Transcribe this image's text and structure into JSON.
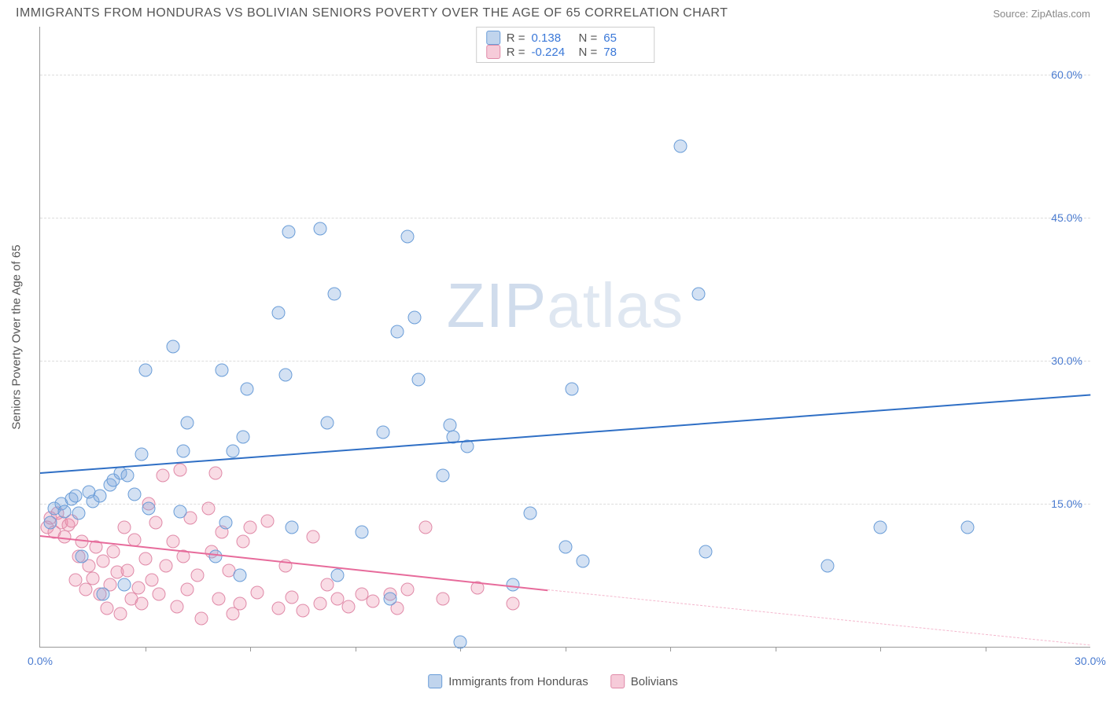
{
  "header": {
    "title": "IMMIGRANTS FROM HONDURAS VS BOLIVIAN SENIORS POVERTY OVER THE AGE OF 65 CORRELATION CHART",
    "source_prefix": "Source: ",
    "source_link": "ZipAtlas.com"
  },
  "watermark": {
    "part1": "ZIP",
    "part2": "atlas"
  },
  "chart": {
    "type": "scatter",
    "yaxis_title": "Seniors Poverty Over the Age of 65",
    "xlim": [
      0,
      30
    ],
    "ylim": [
      0,
      65
    ],
    "xtick_labels": [
      "0.0%",
      "30.0%"
    ],
    "ytick_labels": [
      "15.0%",
      "30.0%",
      "45.0%",
      "60.0%"
    ],
    "ytick_vals": [
      15,
      30,
      45,
      60
    ],
    "xtick_minor": [
      3,
      6,
      9,
      12,
      15,
      18,
      21,
      24,
      27
    ],
    "background_color": "#ffffff",
    "grid_color": "#e0e0e0",
    "point_radius": 8.5,
    "series": {
      "honduras": {
        "label": "Immigrants from Honduras",
        "color_fill": "rgba(130,170,220,0.35)",
        "color_stroke": "#6a9dd8",
        "r": "0.138",
        "n": "65",
        "trend": {
          "x1": 0,
          "y1": 18.3,
          "x2": 30,
          "y2": 26.5,
          "color": "#2f6fc5"
        },
        "points": [
          [
            0.3,
            13
          ],
          [
            0.4,
            14.5
          ],
          [
            0.6,
            15
          ],
          [
            0.7,
            14.2
          ],
          [
            0.9,
            15.5
          ],
          [
            1.0,
            15.8
          ],
          [
            1.1,
            14
          ],
          [
            1.2,
            9.5
          ],
          [
            1.4,
            16.2
          ],
          [
            1.5,
            15.2
          ],
          [
            1.7,
            15.8
          ],
          [
            1.8,
            5.5
          ],
          [
            2.0,
            17
          ],
          [
            2.1,
            17.5
          ],
          [
            2.3,
            18.2
          ],
          [
            2.4,
            6.5
          ],
          [
            2.5,
            18
          ],
          [
            2.7,
            16
          ],
          [
            2.9,
            20.2
          ],
          [
            3.0,
            29
          ],
          [
            3.1,
            14.5
          ],
          [
            3.8,
            31.5
          ],
          [
            4.0,
            14.2
          ],
          [
            4.1,
            20.5
          ],
          [
            4.2,
            23.5
          ],
          [
            5.0,
            9.5
          ],
          [
            5.2,
            29
          ],
          [
            5.3,
            13
          ],
          [
            5.5,
            20.5
          ],
          [
            5.7,
            7.5
          ],
          [
            5.8,
            22
          ],
          [
            5.9,
            27
          ],
          [
            6.8,
            35
          ],
          [
            7.0,
            28.5
          ],
          [
            7.1,
            43.5
          ],
          [
            7.2,
            12.5
          ],
          [
            8.0,
            43.8
          ],
          [
            8.2,
            23.5
          ],
          [
            8.4,
            37
          ],
          [
            8.5,
            7.5
          ],
          [
            9.2,
            12
          ],
          [
            9.8,
            22.5
          ],
          [
            10.0,
            5
          ],
          [
            10.2,
            33
          ],
          [
            10.5,
            43
          ],
          [
            10.7,
            34.5
          ],
          [
            10.8,
            28
          ],
          [
            11.5,
            18
          ],
          [
            11.7,
            23.2
          ],
          [
            11.8,
            22
          ],
          [
            12.0,
            0.5
          ],
          [
            12.2,
            21
          ],
          [
            13.5,
            6.5
          ],
          [
            14.0,
            14
          ],
          [
            15.0,
            10.5
          ],
          [
            15.2,
            27
          ],
          [
            15.5,
            9
          ],
          [
            18.3,
            52.5
          ],
          [
            18.8,
            37
          ],
          [
            19.0,
            10
          ],
          [
            22.5,
            8.5
          ],
          [
            24.0,
            12.5
          ],
          [
            26.5,
            12.5
          ]
        ]
      },
      "bolivians": {
        "label": "Bolivians",
        "color_fill": "rgba(235,140,170,0.3)",
        "color_stroke": "#e08aa8",
        "r": "-0.224",
        "n": "78",
        "trend_solid": {
          "x1": 0,
          "y1": 11.7,
          "x2": 14.5,
          "y2": 6,
          "color": "#e76b9b"
        },
        "trend_dash": {
          "x1": 14.5,
          "y1": 6,
          "x2": 30,
          "y2": 0.2
        },
        "points": [
          [
            0.2,
            12.5
          ],
          [
            0.3,
            13.5
          ],
          [
            0.4,
            12
          ],
          [
            0.5,
            14
          ],
          [
            0.6,
            13
          ],
          [
            0.7,
            11.5
          ],
          [
            0.8,
            12.8
          ],
          [
            0.9,
            13.2
          ],
          [
            1.0,
            7
          ],
          [
            1.1,
            9.5
          ],
          [
            1.2,
            11
          ],
          [
            1.3,
            6
          ],
          [
            1.4,
            8.5
          ],
          [
            1.5,
            7.2
          ],
          [
            1.6,
            10.5
          ],
          [
            1.7,
            5.5
          ],
          [
            1.8,
            9
          ],
          [
            1.9,
            4
          ],
          [
            2.0,
            6.5
          ],
          [
            2.1,
            10
          ],
          [
            2.2,
            7.8
          ],
          [
            2.3,
            3.5
          ],
          [
            2.4,
            12.5
          ],
          [
            2.5,
            8
          ],
          [
            2.6,
            5
          ],
          [
            2.7,
            11.2
          ],
          [
            2.8,
            6.2
          ],
          [
            2.9,
            4.5
          ],
          [
            3.0,
            9.2
          ],
          [
            3.1,
            15
          ],
          [
            3.2,
            7
          ],
          [
            3.3,
            13
          ],
          [
            3.4,
            5.5
          ],
          [
            3.5,
            18
          ],
          [
            3.6,
            8.5
          ],
          [
            3.8,
            11
          ],
          [
            3.9,
            4.2
          ],
          [
            4.0,
            18.5
          ],
          [
            4.1,
            9.5
          ],
          [
            4.2,
            6
          ],
          [
            4.3,
            13.5
          ],
          [
            4.5,
            7.5
          ],
          [
            4.6,
            3
          ],
          [
            4.8,
            14.5
          ],
          [
            4.9,
            10
          ],
          [
            5.0,
            18.2
          ],
          [
            5.1,
            5
          ],
          [
            5.2,
            12
          ],
          [
            5.4,
            8
          ],
          [
            5.5,
            3.5
          ],
          [
            5.7,
            4.5
          ],
          [
            5.8,
            11
          ],
          [
            6.0,
            12.5
          ],
          [
            6.2,
            5.7
          ],
          [
            6.5,
            13.2
          ],
          [
            6.8,
            4
          ],
          [
            7.0,
            8.5
          ],
          [
            7.2,
            5.2
          ],
          [
            7.5,
            3.8
          ],
          [
            7.8,
            11.5
          ],
          [
            8.0,
            4.5
          ],
          [
            8.2,
            6.5
          ],
          [
            8.5,
            5
          ],
          [
            8.8,
            4.2
          ],
          [
            9.2,
            5.5
          ],
          [
            9.5,
            4.8
          ],
          [
            10.0,
            5.5
          ],
          [
            10.2,
            4
          ],
          [
            10.5,
            6
          ],
          [
            11.0,
            12.5
          ],
          [
            11.5,
            5
          ],
          [
            12.5,
            6.2
          ],
          [
            13.5,
            4.5
          ]
        ]
      }
    }
  },
  "legend_bottom": {
    "item1": "Immigrants from Honduras",
    "item2": "Bolivians"
  }
}
